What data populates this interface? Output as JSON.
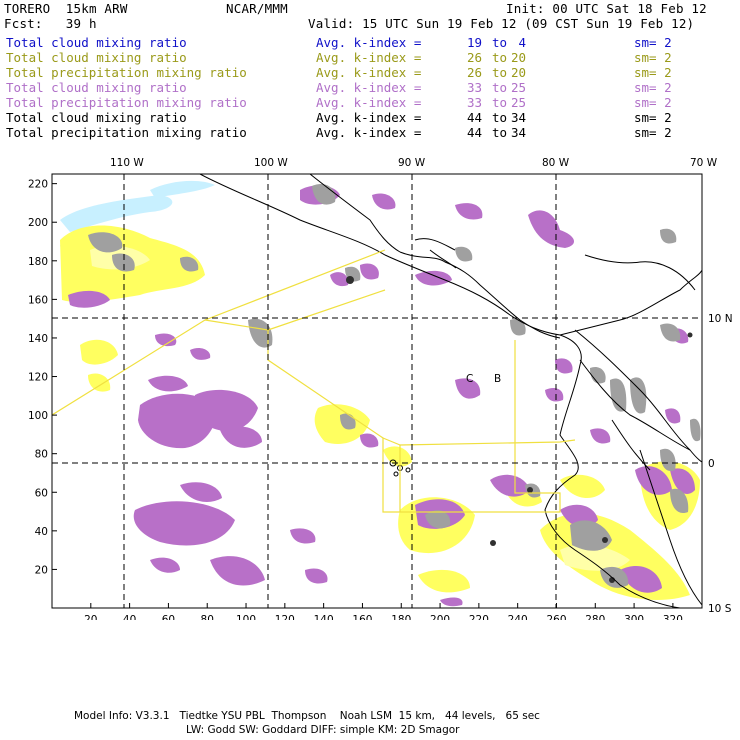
{
  "header": {
    "model": "TORERO  15km ARW",
    "org": "NCAR/MMM",
    "init": "Init: 00 UTC Sat 18 Feb 12",
    "fcst": "Fcst:   39 h",
    "valid": "Valid: 15 UTC Sun 19 Feb 12 (09 CST Sun 19 Feb 12)"
  },
  "legend": [
    {
      "name": "Total cloud mixing ratio",
      "avg": "Avg. k-index =",
      "a": "19",
      "to": "to",
      "b": "4",
      "sm": "sm= 2",
      "color": "#1010c8"
    },
    {
      "name": "Total cloud mixing ratio",
      "avg": "Avg. k-index =",
      "a": "26",
      "to": "to",
      "b": "20",
      "sm": "sm= 2",
      "color": "#9a9a1a"
    },
    {
      "name": "Total precipitation mixing ratio",
      "avg": "Avg. k-index =",
      "a": "26",
      "to": "to",
      "b": "20",
      "sm": "sm= 2",
      "color": "#9a9a1a"
    },
    {
      "name": "Total cloud mixing ratio",
      "avg": "Avg. k-index =",
      "a": "33",
      "to": "to",
      "b": "25",
      "sm": "sm= 2",
      "color": "#b070c8"
    },
    {
      "name": "Total precipitation mixing ratio",
      "avg": "Avg. k-index =",
      "a": "33",
      "to": "to",
      "b": "25",
      "sm": "sm= 2",
      "color": "#b070c8"
    },
    {
      "name": "Total cloud mixing ratio",
      "avg": "Avg. k-index =",
      "a": "44",
      "to": "to",
      "b": "34",
      "sm": "sm= 2",
      "color": "#000000"
    },
    {
      "name": "Total precipitation mixing ratio",
      "avg": "Avg. k-index =",
      "a": "44",
      "to": "to",
      "b": "34",
      "sm": "sm= 2",
      "color": "#000000"
    }
  ],
  "map": {
    "lon_labels": [
      "110 W",
      "100 W",
      "90 W",
      "80 W",
      "70 W"
    ],
    "lat_labels": [
      "10 N",
      "0",
      "10 S"
    ],
    "x_ticks": [
      "20",
      "40",
      "60",
      "80",
      "100",
      "120",
      "140",
      "160",
      "180",
      "200",
      "220",
      "240",
      "260",
      "280",
      "300",
      "320"
    ],
    "y_ticks": [
      "220",
      "200",
      "180",
      "160",
      "140",
      "120",
      "100",
      "80",
      "60",
      "40",
      "20"
    ],
    "x_range": [
      0,
      335
    ],
    "y_range": [
      0,
      225
    ],
    "region_labels": [
      "C",
      "B"
    ],
    "colors": {
      "purple": "#b870c8",
      "yellow": "#ffff60",
      "lightyellow": "#ffffa8",
      "gray": "#a0a0a0",
      "lightblue": "#c8f0ff",
      "coast": "#000000",
      "box": "#f0e040"
    }
  },
  "footer": {
    "line1": "Model Info: V3.3.1   Tiedtke YSU PBL  Thompson    Noah LSM  15 km,   44 levels,   65 sec",
    "line2": "LW: Godd SW: Goddard DIFF: simple KM: 2D Smagor"
  }
}
